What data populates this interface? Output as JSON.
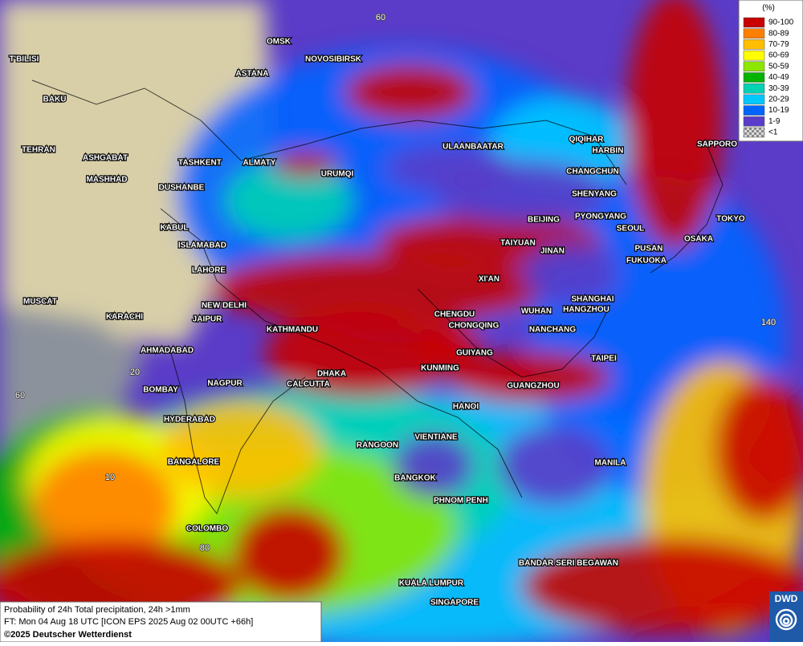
{
  "legend": {
    "title": "(%)",
    "items": [
      {
        "label": "90-100",
        "color": "#c80000"
      },
      {
        "label": "80-89",
        "color": "#ff7f00"
      },
      {
        "label": "70-79",
        "color": "#ffbf00"
      },
      {
        "label": "60-69",
        "color": "#ffff00"
      },
      {
        "label": "50-59",
        "color": "#8ce600"
      },
      {
        "label": "40-49",
        "color": "#00b400"
      },
      {
        "label": "30-39",
        "color": "#00d2b4"
      },
      {
        "label": "20-29",
        "color": "#00c8ff"
      },
      {
        "label": "10-19",
        "color": "#0064ff"
      },
      {
        "label": "1-9",
        "color": "#5a3cc8"
      },
      {
        "label": "<1",
        "color": "checkered"
      }
    ]
  },
  "cities": [
    "OMSK",
    "NOVOSIBIRSK",
    "ASTANA",
    "T'BILISI",
    "BAKU",
    "TEHRAN",
    "ASHGABAT",
    "MASHHAD",
    "TASHKENT",
    "ALMATY",
    "URUMQI",
    "DUSHANBE",
    "ULAANBAATAR",
    "QIQIHAR",
    "HARBIN",
    "CHANGCHUN",
    "SHENYANG",
    "BEIJING",
    "PYONGYANG",
    "SEOUL",
    "SAPPORO",
    "TOKYO",
    "OSAKA",
    "PUSAN",
    "FUKUOKA",
    "TAIYUAN",
    "JINAN",
    "KABUL",
    "ISLAMABAD",
    "LAHORE",
    "XI'AN",
    "SHANGHAI",
    "HANGZHOU",
    "WUHAN",
    "NANCHANG",
    "CHENGDU",
    "CHONGQING",
    "NEW DELHI",
    "JAIPUR",
    "KATHMANDU",
    "MUSCAT",
    "KARACHI",
    "AHMADABAD",
    "GUIYANG",
    "TAIPEI",
    "KUNMING",
    "DHAKA",
    "CALCUTTA",
    "NAGPUR",
    "BOMBAY",
    "GUANGZHOU",
    "HANOI",
    "HYDERABAD",
    "VIENTIANE",
    "RANGOON",
    "MANILA",
    "BANGALORE",
    "BANGKOK",
    "PHNOM PENH",
    "COLOMBO",
    "BANDAR SERI BEGAWAN",
    "KUALA LUMPUR",
    "SINGAPORE"
  ],
  "grid_labels": [
    "60",
    "20",
    "60",
    "10",
    "80",
    "140"
  ],
  "info": {
    "line1": "Probability of 24h Total precipitation, 24h >1mm",
    "line2": "FT: Mon 04 Aug 18 UTC [ICON EPS 2025 Aug 02 00UTC +66h]",
    "copyright": "©2025 Deutscher Wetterdienst"
  },
  "logo": "DWD"
}
